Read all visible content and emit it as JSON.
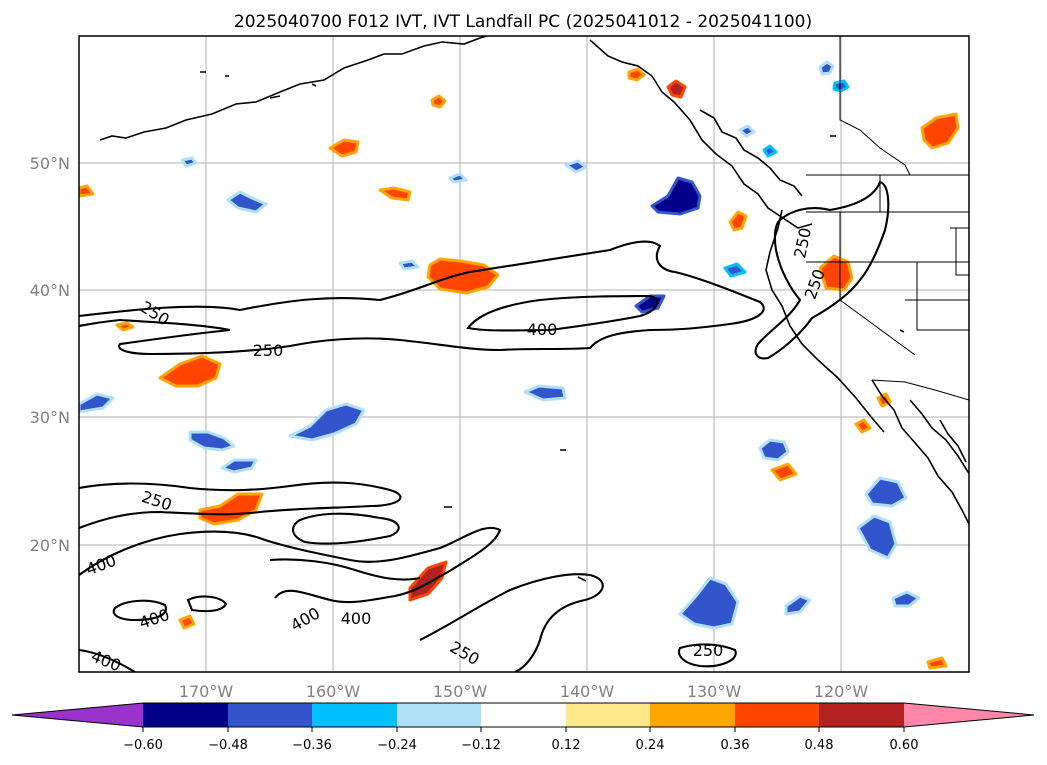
{
  "title": "2025040700 F012 IVT, IVT Landfall PC (2025041012 - 2025041100)",
  "map": {
    "lon_ticks": [
      "170°W",
      "160°W",
      "150°W",
      "140°W",
      "130°W",
      "120°W"
    ],
    "lat_ticks": [
      "50°N",
      "40°N",
      "30°N",
      "20°N"
    ],
    "contour_labels": [
      "250",
      "250",
      "250",
      "250",
      "400",
      "250",
      "250",
      "400",
      "400",
      "400",
      "400",
      "400",
      "250",
      "250"
    ]
  },
  "colorbar": {
    "ticks": [
      "−0.60",
      "−0.48",
      "−0.36",
      "−0.24",
      "−0.12",
      "0.12",
      "0.24",
      "0.36",
      "0.48",
      "0.60"
    ],
    "colors": [
      "#9933cc",
      "#00008b",
      "#3355cc",
      "#00bfff",
      "#b0e0f8",
      "#ffffff",
      "#ffe88a",
      "#ffa500",
      "#ff4500",
      "#b22222",
      "#ff88aa"
    ]
  },
  "blobs": [
    {
      "c": "#ff4500",
      "e": "#ffa500"
    },
    {
      "c": "#3355cc",
      "e": "#b0e0f8"
    },
    {
      "c": "#b22222",
      "e": "#ff4500"
    },
    {
      "c": "#ff4500",
      "e": "#ffa500"
    },
    {
      "c": "#3355cc",
      "e": "#00bfff"
    },
    {
      "c": "#ff4500",
      "e": "#ffa500"
    },
    {
      "c": "#00008b",
      "e": "#3355cc"
    },
    {
      "c": "#ff4500",
      "e": "#ffa500"
    },
    {
      "c": "#3355cc",
      "e": "#b0e0f8"
    },
    {
      "c": "#ff4500",
      "e": "#ffa500"
    },
    {
      "c": "#3355cc",
      "e": "#b0e0f8"
    },
    {
      "c": "#3355cc",
      "e": "#b0e0f8"
    },
    {
      "c": "#ff4500",
      "e": "#ffa500"
    },
    {
      "c": "#3355cc",
      "e": "#00bfff"
    },
    {
      "c": "#3355cc",
      "e": "#b0e0f8"
    },
    {
      "c": "#3355cc",
      "e": "#b0e0f8"
    },
    {
      "c": "#ff4500",
      "e": "#ffa500"
    },
    {
      "c": "#3355cc",
      "e": "#b0e0f8"
    },
    {
      "c": "#00008b",
      "e": "#3355cc"
    },
    {
      "c": "#3355cc",
      "e": "#00bfff"
    },
    {
      "c": "#ff4500",
      "e": "#ffa500"
    },
    {
      "c": "#3355cc",
      "e": "#b0e0f8"
    },
    {
      "c": "#3355cc",
      "e": "#b0e0f8"
    },
    {
      "c": "#3355cc",
      "e": "#b0e0f8"
    },
    {
      "c": "#3355cc",
      "e": "#b0e0f8"
    },
    {
      "c": "#ff4500",
      "e": "#ffa500"
    },
    {
      "c": "#ff4500",
      "e": "#ffa500"
    },
    {
      "c": "#3355cc",
      "e": "#b0e0f8"
    },
    {
      "c": "#ff4500",
      "e": "#ffa500"
    },
    {
      "c": "#ff4500",
      "e": "#ffa500"
    },
    {
      "c": "#3355cc",
      "e": "#b0e0f8"
    },
    {
      "c": "#b22222",
      "e": "#ff4500"
    },
    {
      "c": "#ff4500",
      "e": "#ffa500"
    },
    {
      "c": "#ff4500",
      "e": "#ffa500"
    },
    {
      "c": "#3355cc",
      "e": "#b0e0f8"
    },
    {
      "c": "#ff4500",
      "e": "#ffa500"
    },
    {
      "c": "#ff4500",
      "e": "#ffa500"
    },
    {
      "c": "#3355cc",
      "e": "#b0e0f8"
    },
    {
      "c": "#3355cc",
      "e": "#b0e0f8"
    },
    {
      "c": "#3355cc",
      "e": "#b0e0f8"
    },
    {
      "c": "#3355cc",
      "e": "#b0e0f8"
    },
    {
      "c": "#ff4500",
      "e": "#ffa500"
    }
  ]
}
